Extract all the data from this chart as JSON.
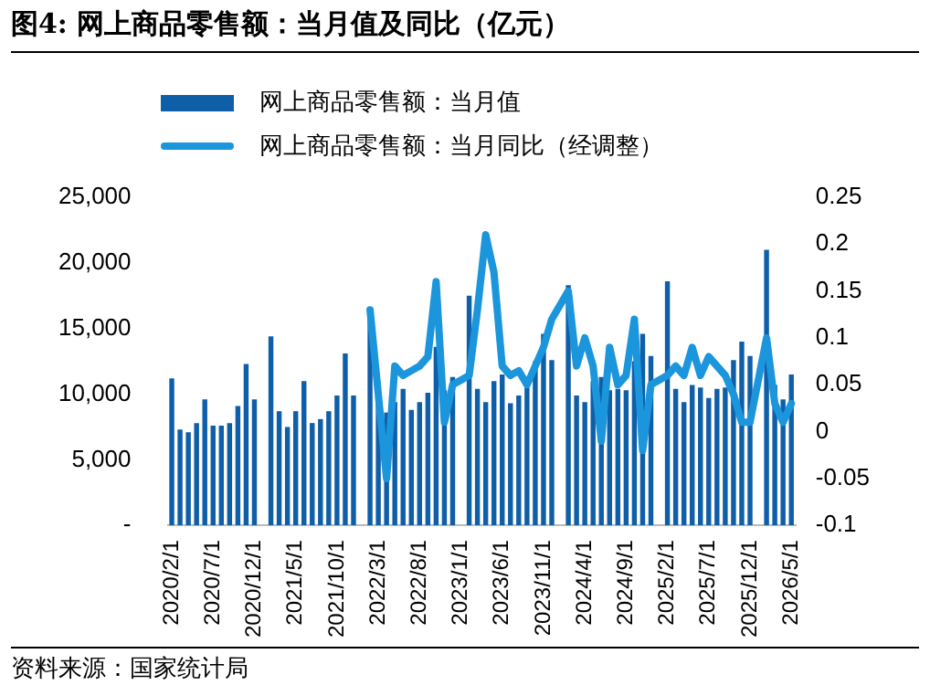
{
  "chart_data": {
    "type": "bar",
    "title": "图4:  网上商品零售额：当月值及同比（亿元）",
    "categories": [
      "2020/2/1",
      null,
      null,
      null,
      null,
      "2020/7/1",
      null,
      null,
      null,
      null,
      "2020/12/1",
      null,
      null,
      null,
      null,
      "2021/5/1",
      null,
      null,
      null,
      null,
      "2021/10/1",
      null,
      null,
      null,
      null,
      "2022/3/1",
      null,
      null,
      null,
      null,
      "2022/8/1",
      null,
      null,
      null,
      null,
      "2023/1/1",
      null,
      null,
      null,
      null,
      "2023/6/1",
      null,
      null,
      null,
      null,
      "2023/11/1",
      null,
      null,
      null,
      null,
      "2024/4/1",
      null,
      null,
      null,
      null,
      "2024/9/1",
      null,
      null,
      null,
      null,
      "2025/2/1",
      null,
      null,
      null,
      null,
      "2025/7/1",
      null,
      null,
      null,
      null,
      "2025/12/1",
      null,
      null,
      null,
      null,
      "2026/5/1"
    ],
    "series": [
      {
        "name": "网上商品零售额：当月值",
        "color": "#0f5ea8",
        "values": [
          11200,
          7300,
          7100,
          7800,
          9600,
          7600,
          7600,
          7800,
          9100,
          12300,
          9600,
          null,
          14400,
          8700,
          7500,
          8700,
          11000,
          7800,
          8100,
          8700,
          9900,
          13100,
          9900,
          null,
          16400,
          10000,
          8600,
          9400,
          10400,
          8800,
          9400,
          10100,
          13600,
          10300,
          11300,
          null,
          17500,
          10400,
          9400,
          11000,
          11500,
          9300,
          9900,
          10500,
          12500,
          14600,
          12600,
          null,
          18300,
          9900,
          9400,
          11000,
          11300,
          10300,
          10400,
          10300,
          12500,
          14600,
          12900,
          null,
          18600,
          10400,
          9400,
          10700,
          10500,
          9700,
          10400,
          10500,
          12600,
          14000,
          12900,
          null,
          21000,
          10700,
          9600,
          11500
        ]
      },
      {
        "name": "网上商品零售额：当月同比（经调整）",
        "type": "line",
        "axis": "y2",
        "color": "#1b95db",
        "values": [
          null,
          null,
          null,
          null,
          null,
          null,
          null,
          null,
          null,
          null,
          null,
          null,
          null,
          null,
          null,
          null,
          null,
          null,
          null,
          null,
          null,
          null,
          null,
          null,
          0.13,
          0.04,
          -0.05,
          0.07,
          0.06,
          0.065,
          0.07,
          0.08,
          0.16,
          0.01,
          0.05,
          null,
          0.06,
          0.13,
          0.21,
          0.17,
          0.07,
          0.06,
          0.065,
          0.05,
          0.07,
          0.09,
          0.12,
          null,
          0.15,
          0.07,
          0.1,
          0.07,
          -0.01,
          0.09,
          0.05,
          0.06,
          0.12,
          -0.02,
          0.05,
          null,
          0.06,
          0.07,
          0.06,
          0.09,
          0.06,
          0.08,
          0.07,
          0.06,
          0.04,
          0.01,
          0.01,
          null,
          0.1,
          0.03,
          0.01,
          0.03
        ]
      }
    ],
    "ylim": [
      0,
      25000
    ],
    "yticks": [
      {
        "value": 0,
        "label": "-"
      },
      {
        "value": 5000,
        "label": "5,000"
      },
      {
        "value": 10000,
        "label": "10,000"
      },
      {
        "value": 15000,
        "label": "15,000"
      },
      {
        "value": 20000,
        "label": "20,000"
      },
      {
        "value": 25000,
        "label": "25,000"
      }
    ],
    "y2lim": [
      -0.1,
      0.25
    ],
    "y2ticks": [
      -0.1,
      -0.05,
      0,
      0.05,
      0.1,
      0.15,
      0.2,
      0.25
    ],
    "grid": false,
    "legend": "top",
    "marker": "none",
    "annotations": [
      "资料来源：国家统计局"
    ]
  }
}
